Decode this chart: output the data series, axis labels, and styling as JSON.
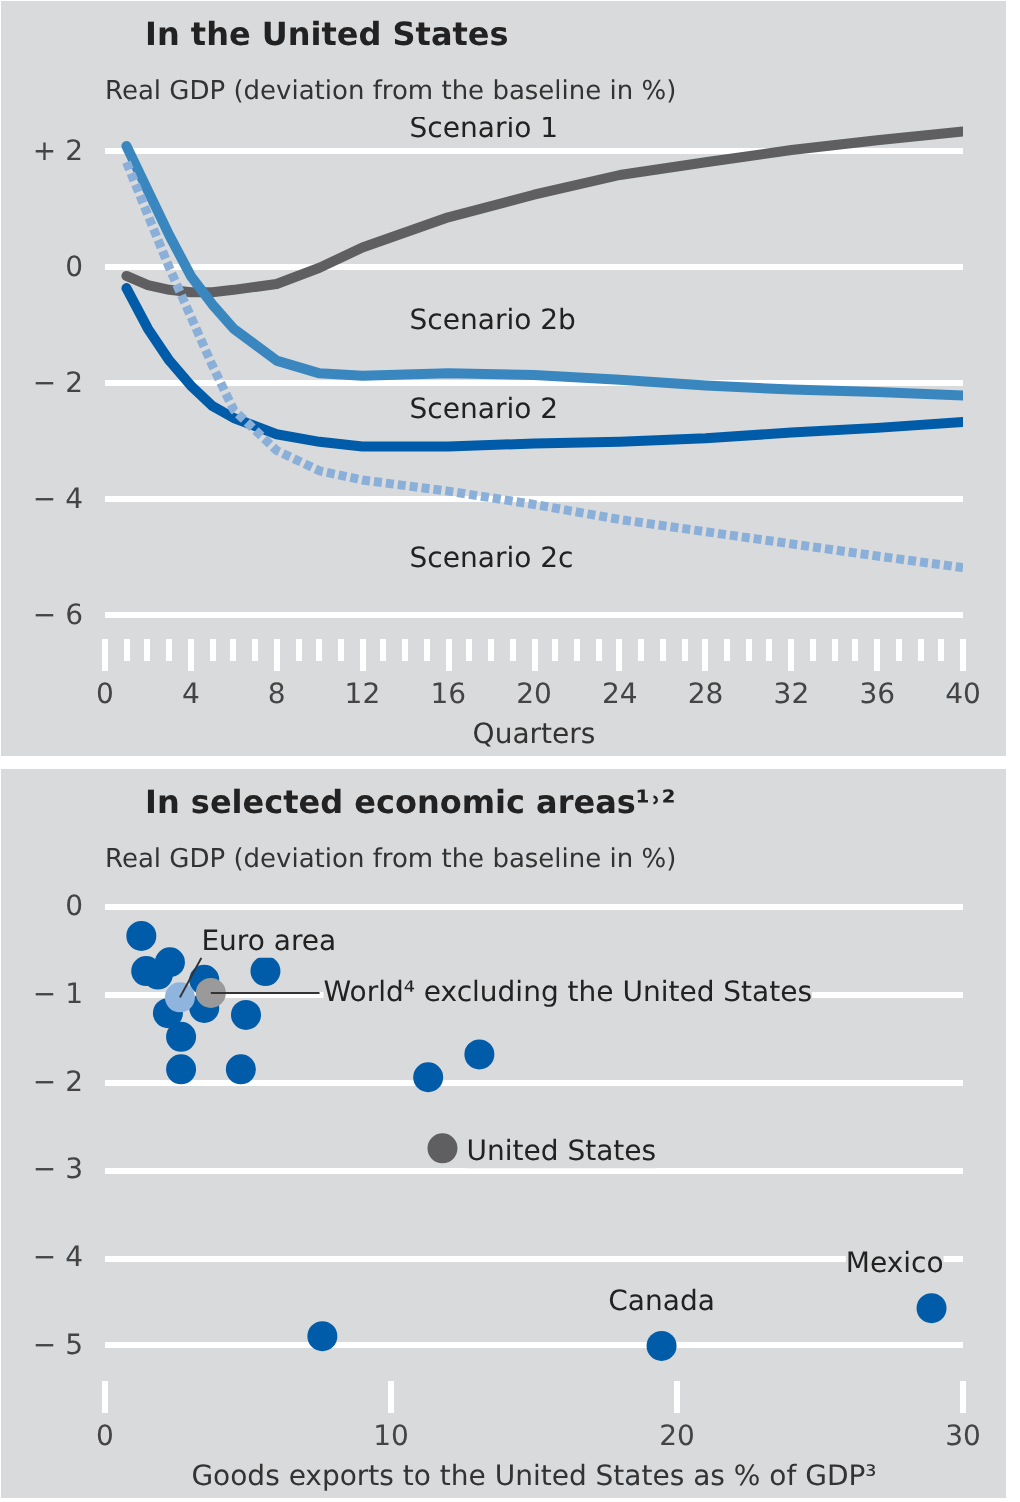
{
  "chart_data": [
    {
      "type": "line",
      "title": "In the United States",
      "ylabel": "Real GDP (deviation from the baseline in %)",
      "xlabel": "Quarters",
      "x": [
        1,
        2,
        3,
        4,
        5,
        6,
        8,
        10,
        12,
        16,
        20,
        24,
        28,
        32,
        36,
        40
      ],
      "series": [
        {
          "name": "Scenario 1",
          "color": "#5f5f61",
          "values": [
            -0.14,
            -0.3,
            -0.38,
            -0.42,
            -0.42,
            -0.38,
            -0.28,
            -0.0,
            0.35,
            0.87,
            1.26,
            1.6,
            1.82,
            2.03,
            2.2,
            2.35
          ]
        },
        {
          "name": "Scenario 2b",
          "color": "#3a87c0",
          "values": [
            2.1,
            1.33,
            0.56,
            -0.14,
            -0.63,
            -1.05,
            -1.6,
            -1.82,
            -1.86,
            -1.82,
            -1.85,
            -1.93,
            -2.03,
            -2.1,
            -2.14,
            -2.2
          ]
        },
        {
          "name": "Scenario 2",
          "color": "#005ca9",
          "values": [
            -0.35,
            -1.05,
            -1.6,
            -2.03,
            -2.38,
            -2.59,
            -2.87,
            -3.0,
            -3.08,
            -3.08,
            -3.03,
            -3.0,
            -2.94,
            -2.84,
            -2.76,
            -2.66
          ]
        },
        {
          "name": "Scenario 2c",
          "color": "#8aafd9",
          "line_style": "dashed",
          "values": [
            1.82,
            0.91,
            0.0,
            -0.84,
            -1.68,
            -2.45,
            -3.15,
            -3.5,
            -3.66,
            -3.85,
            -4.08,
            -4.34,
            -4.55,
            -4.76,
            -4.97,
            -5.17
          ]
        }
      ],
      "xlim": [
        0,
        40
      ],
      "xticks": [
        0,
        4,
        8,
        12,
        16,
        20,
        24,
        28,
        32,
        36,
        40
      ],
      "ylim": [
        -6.4,
        2.6
      ],
      "yticks": [
        {
          "value": 2,
          "label": "+ 2"
        },
        0,
        {
          "value": -2,
          "label": "− 2"
        },
        {
          "value": -4,
          "label": "− 4"
        },
        {
          "value": -6,
          "label": "− 6"
        }
      ],
      "grid": "y",
      "line_style": "solid"
    },
    {
      "type": "scatter",
      "title": "In selected economic areas¹˒²",
      "ylabel": "Real GDP (deviation from the baseline in %)",
      "xlabel": "Goods exports to the United States as % of GDP³",
      "series": [
        {
          "color": "#005ca9",
          "x": [
            1.27,
            1.44,
            1.85,
            2.27,
            3.47,
            5.61,
            2.2,
            3.47,
            4.93,
            2.66,
            2.66,
            4.75,
            11.3,
            13.09,
            7.6,
            19.46,
            28.9
          ],
          "values": [
            -0.33,
            -0.73,
            -0.77,
            -0.63,
            -0.83,
            -0.73,
            -1.21,
            -1.15,
            -1.23,
            -1.48,
            -1.85,
            -1.85,
            -1.94,
            -1.68,
            -4.89,
            -5.0,
            -4.57
          ]
        },
        {
          "name": "Euro area",
          "color": "#8fb4dd",
          "x": [
            2.62
          ],
          "values": [
            -1.03
          ]
        },
        {
          "name": "World⁴ excluding the United States",
          "color": "#9a9a9a",
          "x": [
            3.7
          ],
          "values": [
            -0.98
          ]
        },
        {
          "name": "United States",
          "color": "#5f5f61",
          "x": [
            11.8
          ],
          "values": [
            -2.75
          ]
        }
      ],
      "annotations": [
        {
          "text": "Mexico",
          "x": 28.9,
          "y": -4.57
        },
        {
          "text": "Canada",
          "x": 19.46,
          "y": -5.0
        }
      ],
      "xlim": [
        0,
        30
      ],
      "xticks": [
        0,
        10,
        20,
        30
      ],
      "ylim": [
        -5.4,
        0.25
      ],
      "yticks": [
        0,
        {
          "value": -1,
          "label": "− 1"
        },
        {
          "value": -2,
          "label": "− 2"
        },
        {
          "value": -3,
          "label": "− 3"
        },
        {
          "value": -4,
          "label": "− 4"
        },
        {
          "value": -5,
          "label": "− 5"
        }
      ],
      "grid": "y",
      "marker": "circle"
    }
  ]
}
